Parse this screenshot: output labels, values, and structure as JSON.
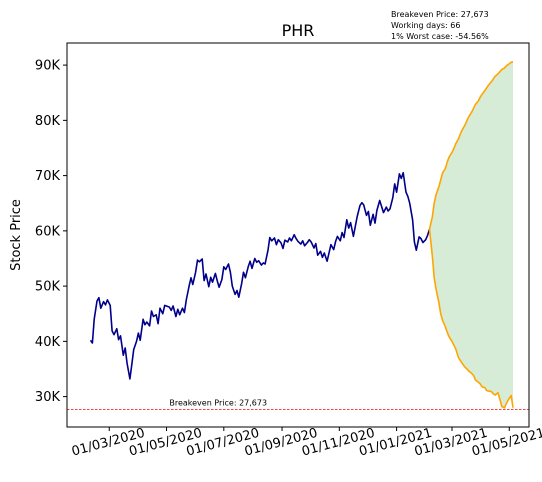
{
  "chart_data": {
    "type": "line",
    "title": "PHR",
    "ylabel": "Stock Price",
    "xlabel": "",
    "ylim": [
      24500,
      94000
    ],
    "xlim": [
      "2020-01-16",
      "2021-05-22"
    ],
    "grid": false,
    "annotation_lines": [
      "Breakeven Price: 27,673",
      "Working days: 66",
      "1% Worst case: -54.56%"
    ],
    "breakeven": {
      "value": 27673,
      "label": "Breakeven Price: 27,673",
      "color": "#ff0000"
    },
    "y_ticks": [
      {
        "value": 30000,
        "label": "30K"
      },
      {
        "value": 40000,
        "label": "40K"
      },
      {
        "value": 50000,
        "label": "50K"
      },
      {
        "value": 60000,
        "label": "60K"
      },
      {
        "value": 70000,
        "label": "70K"
      },
      {
        "value": 80000,
        "label": "80K"
      },
      {
        "value": 90000,
        "label": "90K"
      }
    ],
    "x_ticks": [
      {
        "value": "2020-03-01",
        "label": "01/03/2020"
      },
      {
        "value": "2020-05-01",
        "label": "01/05/2020"
      },
      {
        "value": "2020-07-01",
        "label": "01/07/2020"
      },
      {
        "value": "2020-09-01",
        "label": "01/09/2020"
      },
      {
        "value": "2020-11-01",
        "label": "01/11/2020"
      },
      {
        "value": "2021-01-01",
        "label": "01/01/2021"
      },
      {
        "value": "2021-03-01",
        "label": "01/03/2021"
      },
      {
        "value": "2021-05-01",
        "label": "01/05/2021"
      }
    ],
    "series": [
      {
        "color": "#00008b",
        "points": [
          [
            "2020-02-10",
            40200
          ],
          [
            "2020-02-12",
            39700
          ],
          [
            "2020-02-14",
            44000
          ],
          [
            "2020-02-17",
            47300
          ],
          [
            "2020-02-19",
            47900
          ],
          [
            "2020-02-21",
            46000
          ],
          [
            "2020-02-24",
            47200
          ],
          [
            "2020-02-26",
            46600
          ],
          [
            "2020-02-28",
            47500
          ],
          [
            "2020-03-02",
            46500
          ],
          [
            "2020-03-04",
            41900
          ],
          [
            "2020-03-06",
            41200
          ],
          [
            "2020-03-09",
            42300
          ],
          [
            "2020-03-11",
            40300
          ],
          [
            "2020-03-13",
            41000
          ],
          [
            "2020-03-16",
            37500
          ],
          [
            "2020-03-18",
            38800
          ],
          [
            "2020-03-20",
            36000
          ],
          [
            "2020-03-23",
            33200
          ],
          [
            "2020-03-25",
            35800
          ],
          [
            "2020-03-27",
            38500
          ],
          [
            "2020-03-30",
            40000
          ],
          [
            "2020-04-01",
            41500
          ],
          [
            "2020-04-03",
            40200
          ],
          [
            "2020-04-06",
            44000
          ],
          [
            "2020-04-08",
            43000
          ],
          [
            "2020-04-10",
            43500
          ],
          [
            "2020-04-13",
            42800
          ],
          [
            "2020-04-15",
            45500
          ],
          [
            "2020-04-17",
            44500
          ],
          [
            "2020-04-20",
            44800
          ],
          [
            "2020-04-22",
            43200
          ],
          [
            "2020-04-24",
            46000
          ],
          [
            "2020-04-27",
            45000
          ],
          [
            "2020-04-29",
            46500
          ],
          [
            "2020-05-04",
            46200
          ],
          [
            "2020-05-06",
            45600
          ],
          [
            "2020-05-08",
            46400
          ],
          [
            "2020-05-11",
            44500
          ],
          [
            "2020-05-13",
            45800
          ],
          [
            "2020-05-15",
            44800
          ],
          [
            "2020-05-18",
            46000
          ],
          [
            "2020-05-20",
            45200
          ],
          [
            "2020-05-22",
            47500
          ],
          [
            "2020-05-25",
            50000
          ],
          [
            "2020-05-27",
            51500
          ],
          [
            "2020-05-29",
            50300
          ],
          [
            "2020-06-01",
            52500
          ],
          [
            "2020-06-03",
            54700
          ],
          [
            "2020-06-05",
            54400
          ],
          [
            "2020-06-08",
            54900
          ],
          [
            "2020-06-10",
            51000
          ],
          [
            "2020-06-12",
            52200
          ],
          [
            "2020-06-15",
            49900
          ],
          [
            "2020-06-17",
            51600
          ],
          [
            "2020-06-19",
            50700
          ],
          [
            "2020-06-22",
            52300
          ],
          [
            "2020-06-24",
            51000
          ],
          [
            "2020-06-26",
            49800
          ],
          [
            "2020-06-29",
            51200
          ],
          [
            "2020-07-01",
            53500
          ],
          [
            "2020-07-03",
            53000
          ],
          [
            "2020-07-06",
            54000
          ],
          [
            "2020-07-08",
            52500
          ],
          [
            "2020-07-10",
            50000
          ],
          [
            "2020-07-13",
            48500
          ],
          [
            "2020-07-15",
            49200
          ],
          [
            "2020-07-17",
            48000
          ],
          [
            "2020-07-20",
            50500
          ],
          [
            "2020-07-22",
            52500
          ],
          [
            "2020-07-24",
            51500
          ],
          [
            "2020-07-27",
            53500
          ],
          [
            "2020-07-29",
            54500
          ],
          [
            "2020-07-31",
            53200
          ],
          [
            "2020-08-03",
            55000
          ],
          [
            "2020-08-05",
            54300
          ],
          [
            "2020-08-07",
            54600
          ],
          [
            "2020-08-10",
            53800
          ],
          [
            "2020-08-12",
            54200
          ],
          [
            "2020-08-14",
            54000
          ],
          [
            "2020-08-17",
            56500
          ],
          [
            "2020-08-19",
            58800
          ],
          [
            "2020-08-21",
            58200
          ],
          [
            "2020-08-24",
            58700
          ],
          [
            "2020-08-26",
            57500
          ],
          [
            "2020-08-28",
            58400
          ],
          [
            "2020-08-31",
            57800
          ],
          [
            "2020-09-02",
            56800
          ],
          [
            "2020-09-04",
            58300
          ],
          [
            "2020-09-07",
            58000
          ],
          [
            "2020-09-09",
            58700
          ],
          [
            "2020-09-11",
            58200
          ],
          [
            "2020-09-14",
            59300
          ],
          [
            "2020-09-16",
            58600
          ],
          [
            "2020-09-18",
            58100
          ],
          [
            "2020-09-21",
            57600
          ],
          [
            "2020-09-23",
            58200
          ],
          [
            "2020-09-25",
            57300
          ],
          [
            "2020-09-28",
            57900
          ],
          [
            "2020-09-30",
            58400
          ],
          [
            "2020-10-02",
            58000
          ],
          [
            "2020-10-05",
            56900
          ],
          [
            "2020-10-07",
            57700
          ],
          [
            "2020-10-09",
            55600
          ],
          [
            "2020-10-12",
            56300
          ],
          [
            "2020-10-14",
            55200
          ],
          [
            "2020-10-16",
            56000
          ],
          [
            "2020-10-19",
            54500
          ],
          [
            "2020-10-21",
            56000
          ],
          [
            "2020-10-23",
            57500
          ],
          [
            "2020-10-26",
            56600
          ],
          [
            "2020-10-28",
            58100
          ],
          [
            "2020-10-30",
            59000
          ],
          [
            "2020-11-02",
            58200
          ],
          [
            "2020-11-04",
            59700
          ],
          [
            "2020-11-06",
            58800
          ],
          [
            "2020-11-09",
            62000
          ],
          [
            "2020-11-11",
            60500
          ],
          [
            "2020-11-13",
            61500
          ],
          [
            "2020-11-16",
            59000
          ],
          [
            "2020-11-18",
            60800
          ],
          [
            "2020-11-20",
            62600
          ],
          [
            "2020-11-23",
            64600
          ],
          [
            "2020-11-25",
            65100
          ],
          [
            "2020-11-27",
            64700
          ],
          [
            "2020-11-30",
            62800
          ],
          [
            "2020-12-02",
            63500
          ],
          [
            "2020-12-04",
            61000
          ],
          [
            "2020-12-07",
            63000
          ],
          [
            "2020-12-09",
            61400
          ],
          [
            "2020-12-11",
            63700
          ],
          [
            "2020-12-14",
            65500
          ],
          [
            "2020-12-16",
            64400
          ],
          [
            "2020-12-18",
            63300
          ],
          [
            "2020-12-21",
            64300
          ],
          [
            "2020-12-23",
            63600
          ],
          [
            "2020-12-25",
            64000
          ],
          [
            "2020-12-28",
            66000
          ],
          [
            "2020-12-30",
            68500
          ],
          [
            "2021-01-01",
            67000
          ],
          [
            "2021-01-04",
            70300
          ],
          [
            "2021-01-06",
            69500
          ],
          [
            "2021-01-08",
            70500
          ],
          [
            "2021-01-11",
            67000
          ],
          [
            "2021-01-13",
            66200
          ],
          [
            "2021-01-15",
            65000
          ],
          [
            "2021-01-18",
            62000
          ],
          [
            "2021-01-20",
            58000
          ],
          [
            "2021-01-22",
            56500
          ],
          [
            "2021-01-25",
            58900
          ],
          [
            "2021-01-27",
            58600
          ],
          [
            "2021-01-29",
            57900
          ],
          [
            "2021-02-01",
            58400
          ],
          [
            "2021-02-03",
            59200
          ],
          [
            "2021-02-05",
            60300
          ]
        ]
      },
      {
        "color": "#ffa500",
        "points": [
          [
            "2021-02-05",
            60300
          ],
          [
            "2021-02-08",
            62500
          ],
          [
            "2021-02-10",
            65000
          ],
          [
            "2021-02-12",
            66500
          ],
          [
            "2021-02-15",
            68000
          ],
          [
            "2021-02-17",
            69200
          ],
          [
            "2021-02-19",
            70500
          ],
          [
            "2021-02-22",
            71300
          ],
          [
            "2021-02-24",
            72500
          ],
          [
            "2021-02-26",
            73400
          ],
          [
            "2021-03-01",
            74200
          ],
          [
            "2021-03-03",
            74900
          ],
          [
            "2021-03-05",
            75800
          ],
          [
            "2021-03-08",
            76700
          ],
          [
            "2021-03-10",
            77600
          ],
          [
            "2021-03-12",
            78300
          ],
          [
            "2021-03-15",
            79200
          ],
          [
            "2021-03-17",
            80000
          ],
          [
            "2021-03-19",
            80700
          ],
          [
            "2021-03-22",
            81500
          ],
          [
            "2021-03-24",
            82200
          ],
          [
            "2021-03-26",
            82900
          ],
          [
            "2021-03-29",
            83500
          ],
          [
            "2021-03-31",
            84200
          ],
          [
            "2021-04-02",
            84700
          ],
          [
            "2021-04-05",
            85400
          ],
          [
            "2021-04-07",
            85900
          ],
          [
            "2021-04-09",
            86400
          ],
          [
            "2021-04-12",
            87000
          ],
          [
            "2021-04-14",
            87500
          ],
          [
            "2021-04-16",
            88000
          ],
          [
            "2021-04-19",
            88400
          ],
          [
            "2021-04-21",
            88800
          ],
          [
            "2021-04-23",
            89200
          ],
          [
            "2021-04-26",
            89500
          ],
          [
            "2021-04-28",
            89900
          ],
          [
            "2021-04-30",
            90100
          ],
          [
            "2021-05-03",
            90500
          ],
          [
            "2021-05-05",
            90600
          ]
        ]
      },
      {
        "color": "#ffa500",
        "points": [
          [
            "2021-02-05",
            60300
          ],
          [
            "2021-02-08",
            55500
          ],
          [
            "2021-02-10",
            51500
          ],
          [
            "2021-02-12",
            49500
          ],
          [
            "2021-02-15",
            47000
          ],
          [
            "2021-02-17",
            45000
          ],
          [
            "2021-02-19",
            43800
          ],
          [
            "2021-02-22",
            42600
          ],
          [
            "2021-02-24",
            41600
          ],
          [
            "2021-02-26",
            40800
          ],
          [
            "2021-03-01",
            40000
          ],
          [
            "2021-03-03",
            39300
          ],
          [
            "2021-03-05",
            38600
          ],
          [
            "2021-03-08",
            37000
          ],
          [
            "2021-03-10",
            36500
          ],
          [
            "2021-03-12",
            36000
          ],
          [
            "2021-03-15",
            35300
          ],
          [
            "2021-03-17",
            35000
          ],
          [
            "2021-03-19",
            34600
          ],
          [
            "2021-03-22",
            34200
          ],
          [
            "2021-03-24",
            33800
          ],
          [
            "2021-03-26",
            33000
          ],
          [
            "2021-03-29",
            32600
          ],
          [
            "2021-03-31",
            32300
          ],
          [
            "2021-04-02",
            31800
          ],
          [
            "2021-04-05",
            31600
          ],
          [
            "2021-04-07",
            31100
          ],
          [
            "2021-04-09",
            31000
          ],
          [
            "2021-04-12",
            30900
          ],
          [
            "2021-04-14",
            30500
          ],
          [
            "2021-04-16",
            30300
          ],
          [
            "2021-04-19",
            30700
          ],
          [
            "2021-04-21",
            29500
          ],
          [
            "2021-04-23",
            28200
          ],
          [
            "2021-04-26",
            28000
          ],
          [
            "2021-04-28",
            28800
          ],
          [
            "2021-04-30",
            29400
          ],
          [
            "2021-05-03",
            30200
          ],
          [
            "2021-05-05",
            28000
          ]
        ]
      }
    ],
    "fill_between": {
      "color": "#d7ecd7",
      "upper_series_index": 1,
      "lower_series_index": 2
    }
  }
}
